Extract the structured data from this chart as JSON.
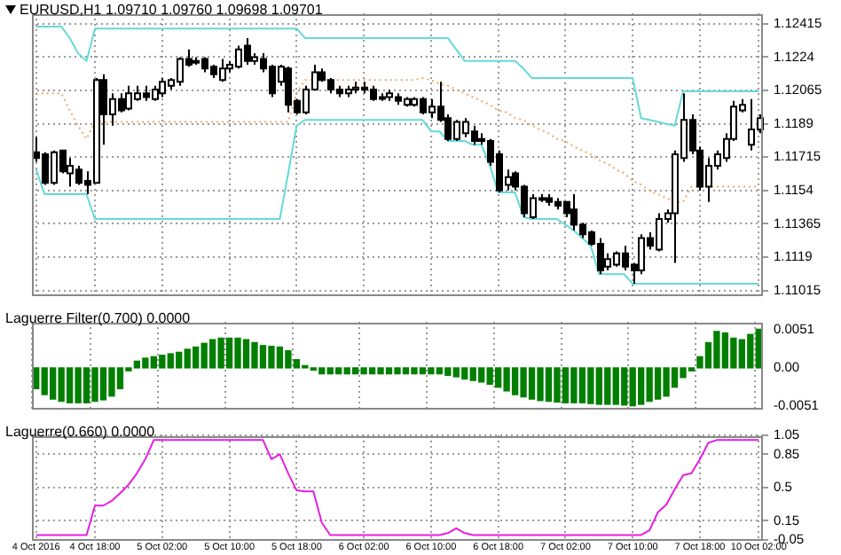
{
  "chart_data": [
    {
      "type": "candlestick",
      "title": "EURUSD,H1  1.09710 1.09760 1.09698 1.09701",
      "tick_labels": "y",
      "grid": true,
      "marker": "none",
      "categories": [
        null,
        null,
        null,
        null,
        null,
        null,
        null,
        null,
        null,
        null,
        null,
        null,
        null,
        null,
        null,
        null,
        null,
        null,
        null,
        null,
        null,
        null,
        null,
        null,
        null,
        null,
        null,
        null,
        null,
        null,
        null,
        null,
        null,
        null,
        null,
        null,
        null,
        null,
        null,
        null,
        null,
        null,
        null,
        null,
        null,
        null,
        null,
        null,
        null,
        null,
        null,
        null,
        null,
        null,
        null,
        null,
        null,
        null,
        null,
        null,
        null,
        null,
        null,
        null,
        null,
        null,
        null,
        null,
        null,
        null,
        null,
        null,
        null,
        null,
        null,
        null,
        null,
        null,
        null,
        null,
        null,
        null,
        null,
        null,
        null,
        null,
        null
      ],
      "ylim": [
        1.1099,
        1.1247
      ],
      "yticks": [
        1.12415,
        1.1224,
        1.12065,
        1.1189,
        1.11715,
        1.1154,
        1.11365,
        1.1119,
        1.11015
      ],
      "ohlc": [
        [
          1.1174,
          1.1182,
          1.1169,
          1.1171
        ],
        [
          1.1173,
          1.1174,
          1.1157,
          1.1158
        ],
        [
          1.1158,
          1.1175,
          1.1157,
          1.1174
        ],
        [
          1.1175,
          1.1175,
          1.1163,
          1.1164
        ],
        [
          1.1163,
          1.1171,
          1.1156,
          1.1167
        ],
        [
          1.1165,
          1.1167,
          1.1157,
          1.1158
        ],
        [
          1.1159,
          1.1164,
          1.1152,
          1.1157
        ],
        [
          1.1158,
          1.1213,
          1.1158,
          1.1212
        ],
        [
          1.1212,
          1.1215,
          1.1178,
          1.1194
        ],
        [
          1.1194,
          1.1205,
          1.1188,
          1.1202
        ],
        [
          1.1202,
          1.1205,
          1.1195,
          1.1196
        ],
        [
          1.1197,
          1.1209,
          1.1196,
          1.1205
        ],
        [
          1.1202,
          1.1209,
          1.1201,
          1.1205
        ],
        [
          1.1205,
          1.1209,
          1.1201,
          1.1203
        ],
        [
          1.1202,
          1.1209,
          1.1201,
          1.1207
        ],
        [
          1.1205,
          1.1213,
          1.1203,
          1.1211
        ],
        [
          1.1209,
          1.1213,
          1.1207,
          1.1212
        ],
        [
          1.1211,
          1.1224,
          1.1209,
          1.1223
        ],
        [
          1.1223,
          1.1228,
          1.1219,
          1.122
        ],
        [
          1.1222,
          1.1224,
          1.122,
          1.1222
        ],
        [
          1.1223,
          1.1224,
          1.1216,
          1.1218
        ],
        [
          1.1219,
          1.122,
          1.1213,
          1.1215
        ],
        [
          1.1212,
          1.1223,
          1.1211,
          1.1218
        ],
        [
          1.1218,
          1.1222,
          1.1216,
          1.122
        ],
        [
          1.1219,
          1.123,
          1.1218,
          1.1228
        ],
        [
          1.123,
          1.1234,
          1.122,
          1.1222
        ],
        [
          1.1222,
          1.1226,
          1.122,
          1.1224
        ],
        [
          1.1223,
          1.1226,
          1.1216,
          1.1218
        ],
        [
          1.1219,
          1.122,
          1.1203,
          1.1205
        ],
        [
          1.1211,
          1.122,
          1.1209,
          1.1219
        ],
        [
          1.1218,
          1.1219,
          1.1195,
          1.1199
        ],
        [
          1.1201,
          1.1202,
          1.1194,
          1.1195
        ],
        [
          1.1195,
          1.1209,
          1.1194,
          1.1207
        ],
        [
          1.1207,
          1.122,
          1.1207,
          1.1216
        ],
        [
          1.1216,
          1.1218,
          1.1211,
          1.1212
        ],
        [
          1.1212,
          1.1213,
          1.1205,
          1.1207
        ],
        [
          1.1207,
          1.1209,
          1.1203,
          1.1205
        ],
        [
          1.1205,
          1.1209,
          1.1203,
          1.1207
        ],
        [
          1.1207,
          1.1211,
          1.1205,
          1.1208
        ],
        [
          1.1208,
          1.1211,
          1.1205,
          1.1207
        ],
        [
          1.1207,
          1.1209,
          1.1201,
          1.1202
        ],
        [
          1.1203,
          1.1205,
          1.1201,
          1.1203
        ],
        [
          1.1203,
          1.1207,
          1.1201,
          1.1205
        ],
        [
          1.1203,
          1.1205,
          1.1199,
          1.1201
        ],
        [
          1.1199,
          1.1203,
          1.1198,
          1.1202
        ],
        [
          1.1199,
          1.1203,
          1.1198,
          1.1202
        ],
        [
          1.1202,
          1.1203,
          1.1194,
          1.1195
        ],
        [
          1.1195,
          1.1202,
          1.1192,
          1.1198
        ],
        [
          1.1198,
          1.1211,
          1.119,
          1.1191
        ],
        [
          1.1192,
          1.1194,
          1.118,
          1.1181
        ],
        [
          1.1181,
          1.1191,
          1.118,
          1.119
        ],
        [
          1.1184,
          1.1192,
          1.1182,
          1.119
        ],
        [
          1.1185,
          1.1188,
          1.1178,
          1.118
        ],
        [
          1.1181,
          1.1184,
          1.1178,
          1.118
        ],
        [
          1.118,
          1.1181,
          1.1167,
          1.1169
        ],
        [
          1.1173,
          1.1175,
          1.1153,
          1.1154
        ],
        [
          1.1157,
          1.1165,
          1.1154,
          1.1161
        ],
        [
          1.1163,
          1.1164,
          1.1154,
          1.1156
        ],
        [
          1.1156,
          1.1157,
          1.114,
          1.1142
        ],
        [
          1.114,
          1.1152,
          1.1139,
          1.115
        ],
        [
          1.115,
          1.1152,
          1.1148,
          1.115
        ],
        [
          1.115,
          1.1152,
          1.1146,
          1.1148
        ],
        [
          1.1148,
          1.115,
          1.1144,
          1.1146
        ],
        [
          1.1148,
          1.1148,
          1.114,
          1.1142
        ],
        [
          1.1144,
          1.1152,
          1.1133,
          1.1136
        ],
        [
          1.1136,
          1.1137,
          1.1129,
          1.1131
        ],
        [
          1.1132,
          1.1133,
          1.1125,
          1.1126
        ],
        [
          1.1126,
          1.1129,
          1.111,
          1.1112
        ],
        [
          1.1114,
          1.1121,
          1.1112,
          1.1118
        ],
        [
          1.1115,
          1.1122,
          1.1114,
          1.1121
        ],
        [
          1.1121,
          1.1125,
          1.1112,
          1.1114
        ],
        [
          1.1115,
          1.1116,
          1.1105,
          1.1112
        ],
        [
          1.1112,
          1.1131,
          1.111,
          1.1129
        ],
        [
          1.1129,
          1.1132,
          1.1123,
          1.1125
        ],
        [
          1.1123,
          1.1142,
          1.1122,
          1.1139
        ],
        [
          1.1139,
          1.1144,
          1.1137,
          1.1142
        ],
        [
          1.1142,
          1.1175,
          1.1116,
          1.1173
        ],
        [
          1.1171,
          1.1205,
          1.1169,
          1.1191
        ],
        [
          1.1191,
          1.1194,
          1.1173,
          1.1175
        ],
        [
          1.1175,
          1.1177,
          1.1154,
          1.1156
        ],
        [
          1.1156,
          1.1171,
          1.1148,
          1.1167
        ],
        [
          1.1167,
          1.1175,
          1.1165,
          1.1173
        ],
        [
          1.1171,
          1.1184,
          1.1169,
          1.1181
        ],
        [
          1.1181,
          1.1201,
          1.118,
          1.1198
        ],
        [
          1.1196,
          1.1202,
          1.1195,
          1.1199
        ],
        [
          1.1178,
          1.1202,
          1.1175,
          1.1186
        ],
        [
          1.1186,
          1.1194,
          1.1184,
          1.1192
        ]
      ],
      "series": [
        {
          "type": "line",
          "color": "#66d9d9",
          "values": [
            1.124,
            1.124,
            1.124,
            1.124,
            1.1234,
            1.1226,
            1.1222,
            1.1239,
            1.1239,
            1.1239,
            1.1239,
            1.1239,
            1.1239,
            1.1239,
            1.1239,
            1.1239,
            1.1239,
            1.1239,
            1.1239,
            1.1239,
            1.1239,
            1.1239,
            1.1239,
            1.1239,
            1.1239,
            1.1239,
            1.1239,
            1.1239,
            1.1239,
            1.1239,
            1.1239,
            1.1239,
            1.1234,
            1.1234,
            1.1234,
            1.1234,
            1.1234,
            1.1234,
            1.1234,
            1.1234,
            1.1234,
            1.1234,
            1.1234,
            1.1234,
            1.1234,
            1.1234,
            1.1234,
            1.1234,
            1.1234,
            1.1234,
            1.1228,
            1.1222,
            1.1222,
            1.1222,
            1.1222,
            1.1222,
            1.1222,
            1.1222,
            1.1218,
            1.1213,
            1.1213,
            1.1213,
            1.1213,
            1.1213,
            1.1213,
            1.1213,
            1.1213,
            1.1213,
            1.1213,
            1.1213,
            1.1213,
            1.1213,
            1.1192,
            1.1191,
            1.119,
            1.1189,
            1.1188,
            1.1206,
            1.1206,
            1.1206,
            1.1206,
            1.1206,
            1.1206,
            1.1206,
            1.1206,
            1.1206,
            1.1206
          ]
        },
        {
          "type": "line",
          "color": "#66d9d9",
          "values": [
            1.1165,
            1.1152,
            1.1152,
            1.1152,
            1.1152,
            1.1152,
            1.1152,
            1.1139,
            1.1139,
            1.1139,
            1.1139,
            1.1139,
            1.1139,
            1.1139,
            1.1139,
            1.1139,
            1.1139,
            1.1139,
            1.1139,
            1.1139,
            1.1139,
            1.1139,
            1.1139,
            1.1139,
            1.1139,
            1.1139,
            1.1139,
            1.1139,
            1.1139,
            1.1139,
            1.1163,
            1.1188,
            1.1191,
            1.1191,
            1.1191,
            1.1191,
            1.1191,
            1.1191,
            1.1191,
            1.1191,
            1.1191,
            1.1191,
            1.1191,
            1.1191,
            1.1191,
            1.1191,
            1.1191,
            1.1185,
            1.1185,
            1.118,
            1.118,
            1.118,
            1.1178,
            1.1178,
            1.1167,
            1.1153,
            1.1153,
            1.1153,
            1.114,
            1.1139,
            1.1139,
            1.1139,
            1.1139,
            1.1136,
            1.1133,
            1.1129,
            1.1125,
            1.111,
            1.111,
            1.111,
            1.111,
            1.1105,
            1.1105,
            1.1105,
            1.1105,
            1.1105,
            1.1105,
            1.1105,
            1.1105,
            1.1105,
            1.1105,
            1.1105,
            1.1105,
            1.1105,
            1.1105,
            1.1105,
            1.1105
          ]
        },
        {
          "type": "line",
          "color": "#f0a868",
          "line_style": "dotted",
          "values": [
            1.1205,
            1.1205,
            1.1205,
            1.1205,
            1.1196,
            1.1188,
            1.1181,
            1.119,
            1.119,
            1.119,
            1.119,
            1.119,
            1.119,
            1.119,
            1.119,
            1.119,
            1.119,
            1.119,
            1.119,
            1.119,
            1.119,
            1.119,
            1.119,
            1.119,
            1.119,
            1.119,
            1.119,
            1.119,
            1.119,
            1.119,
            1.119,
            1.1205,
            1.1212,
            1.1212,
            1.1212,
            1.1212,
            1.1212,
            1.1212,
            1.1212,
            1.1212,
            1.1212,
            1.1212,
            1.1212,
            1.1212,
            1.1212,
            1.1212,
            1.1213,
            1.1212,
            1.121,
            1.1209,
            1.1207,
            1.1205,
            1.1203,
            1.1201,
            1.1199,
            1.1196,
            1.1195,
            1.1192,
            1.1191,
            1.1188,
            1.1186,
            1.1184,
            1.1181,
            1.118,
            1.1177,
            1.1175,
            1.1173,
            1.117,
            1.1168,
            1.1165,
            1.1163,
            1.1159,
            1.1157,
            1.1154,
            1.1152,
            1.115,
            1.1148,
            1.1148,
            1.1156,
            1.1156,
            1.1156,
            1.1156,
            1.1156,
            1.1156,
            1.1156,
            1.1156,
            1.1156
          ]
        }
      ]
    },
    {
      "type": "bar",
      "title": "Laguerre Filter(0.700) 0.0000",
      "tick_labels": "y",
      "grid": "x",
      "color": "#007f00",
      "categories": [
        null,
        null,
        null,
        null,
        null,
        null,
        null,
        null,
        null,
        null,
        null,
        null,
        null,
        null,
        null,
        null,
        null,
        null,
        null,
        null,
        null,
        null,
        null,
        null,
        null,
        null,
        null,
        null,
        null,
        null,
        null,
        null,
        null,
        null,
        null,
        null,
        null,
        null,
        null,
        null,
        null,
        null,
        null,
        null,
        null,
        null,
        null,
        null,
        null,
        null,
        null,
        null,
        null,
        null,
        null,
        null,
        null,
        null,
        null,
        null,
        null,
        null,
        null,
        null,
        null,
        null,
        null,
        null,
        null,
        null,
        null,
        null,
        null,
        null,
        null,
        null,
        null,
        null,
        null,
        null,
        null,
        null,
        null,
        null,
        null,
        null,
        null
      ],
      "ylim": [
        -0.0055,
        0.0062
      ],
      "yticks": [
        0.0051,
        {
          "value": 0,
          "label": "0.00"
        },
        -0.0051
      ],
      "values": [
        -0.0028,
        -0.0036,
        -0.0042,
        -0.0045,
        -0.0047,
        -0.0047,
        -0.0047,
        -0.0045,
        -0.0043,
        -0.0038,
        -0.0028,
        -0.0004,
        0.0009,
        0.0013,
        0.0015,
        0.0017,
        0.0019,
        0.0021,
        0.0025,
        0.0028,
        0.0033,
        0.0038,
        0.004,
        0.004,
        0.004,
        0.0038,
        0.0034,
        0.003,
        0.0029,
        0.0028,
        0.0023,
        0.0011,
        0.0003,
        -0.0003,
        -0.0008,
        -0.0008,
        -0.0008,
        -0.0008,
        -0.0008,
        -0.0008,
        -0.0008,
        -0.0008,
        -0.0008,
        -0.0008,
        -0.0008,
        -0.0008,
        -0.0008,
        -0.0008,
        -0.0008,
        -0.001,
        -0.0012,
        -0.0015,
        -0.0017,
        -0.0019,
        -0.0022,
        -0.0026,
        -0.0031,
        -0.0036,
        -0.0039,
        -0.0042,
        -0.0044,
        -0.0045,
        -0.0046,
        -0.0047,
        -0.0047,
        -0.0047,
        -0.0048,
        -0.0049,
        -0.0049,
        -0.0049,
        -0.005,
        -0.0051,
        -0.0049,
        -0.0045,
        -0.0042,
        -0.0038,
        -0.0026,
        -0.0013,
        -0.0004,
        0.0015,
        0.0034,
        0.0049,
        0.0047,
        0.004,
        0.0038,
        0.0045,
        0.0052
      ]
    },
    {
      "type": "line",
      "title": "Laguerre(0.660) 0.0000",
      "grid": true,
      "marker": "none",
      "color": "#e51ee5",
      "categories": [
        "4 Oct 2016",
        null,
        null,
        null,
        null,
        null,
        null,
        "4 Oct 18:00",
        null,
        null,
        null,
        null,
        null,
        null,
        null,
        "5 Oct 02:00",
        null,
        null,
        null,
        null,
        null,
        null,
        null,
        "5 Oct 10:00",
        null,
        null,
        null,
        null,
        null,
        null,
        null,
        "5 Oct 18:00",
        null,
        null,
        null,
        null,
        null,
        null,
        null,
        "6 Oct 02:00",
        null,
        null,
        null,
        null,
        null,
        null,
        null,
        "6 Oct 10:00",
        null,
        null,
        null,
        null,
        null,
        null,
        null,
        "6 Oct 18:00",
        null,
        null,
        null,
        null,
        null,
        null,
        null,
        "7 Oct 02:00",
        null,
        null,
        null,
        null,
        null,
        null,
        null,
        "7 Oct 10:00",
        null,
        null,
        null,
        null,
        null,
        null,
        null,
        "7 Oct 18:00",
        null,
        null,
        null,
        null,
        null,
        null,
        "10 Oct 02:00"
      ],
      "ylim": [
        -0.05,
        1.05
      ],
      "yticks": [
        1.05,
        0.85,
        0.5,
        0.15,
        -0.05
      ],
      "values": [
        0,
        0,
        0,
        0,
        0,
        0,
        0,
        0.31,
        0.31,
        0.36,
        0.44,
        0.53,
        0.65,
        0.8,
        1,
        1,
        1,
        1,
        1,
        1,
        1,
        1,
        1,
        1,
        1,
        1,
        1,
        1,
        0.8,
        0.85,
        0.65,
        0.47,
        0.46,
        0.46,
        0.13,
        0,
        0,
        0,
        0,
        0,
        0,
        0,
        0,
        0,
        0,
        0,
        0,
        0,
        0,
        0.02,
        0.07,
        0.02,
        0,
        0,
        0,
        0,
        0,
        0,
        0,
        0,
        0,
        0,
        0,
        0,
        0,
        0,
        0,
        0,
        0,
        0,
        0,
        0,
        0,
        0.05,
        0.24,
        0.32,
        0.48,
        0.63,
        0.65,
        0.8,
        0.97,
        1,
        1,
        1,
        1,
        1,
        1
      ]
    }
  ]
}
